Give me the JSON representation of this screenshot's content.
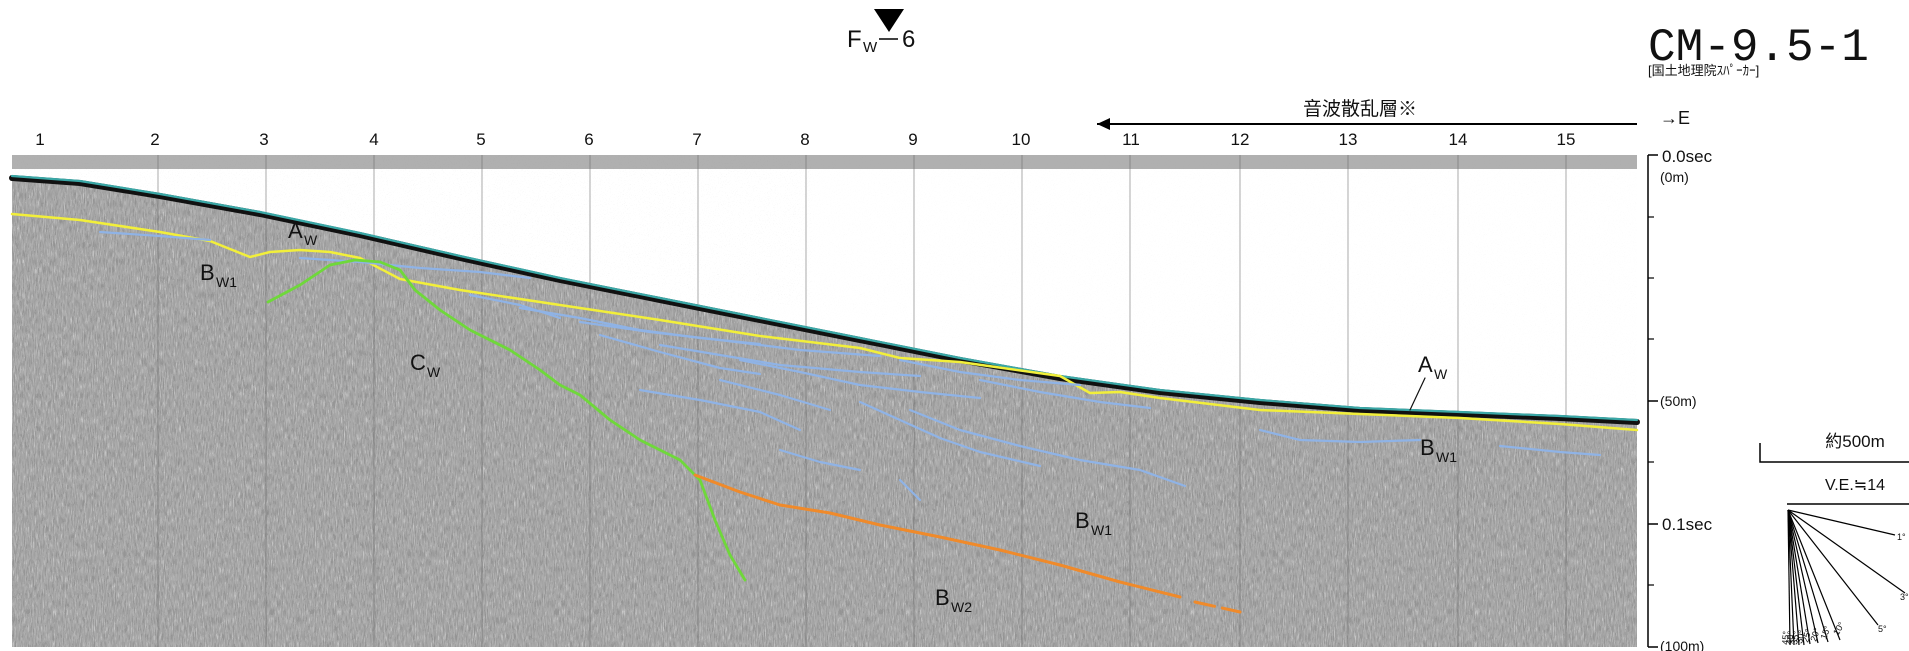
{
  "header": {
    "fault_label": "F",
    "fault_sub": "W",
    "fault_num": "6",
    "profile_id": "CM-9.5-1",
    "profile_source": "[国土地理院ｽﾊﾟｰｶｰ]"
  },
  "shot_points": [
    "1",
    "2",
    "3",
    "4",
    "5",
    "6",
    "7",
    "8",
    "9",
    "10",
    "11",
    "12",
    "13",
    "14",
    "15"
  ],
  "direction": {
    "label": "→E",
    "scatter_label": "音波散乱層※"
  },
  "time_axis": {
    "ticks": [
      {
        "sec": "0.0sec",
        "depth": "(0m)"
      },
      {
        "sec": "",
        "depth": "(50m)"
      },
      {
        "sec": "0.1sec",
        "depth": ""
      },
      {
        "sec": "",
        "depth": "(100m)"
      }
    ]
  },
  "scale": {
    "length_label": "約500m",
    "ve_label": "V.E.≒14",
    "angles": [
      "1°",
      "3°",
      "5°",
      "10°",
      "15°",
      "20°",
      "25°",
      "30°",
      "35°",
      "40°",
      "45°"
    ]
  },
  "horizon_labels": [
    {
      "id": "aw_1",
      "main": "A",
      "sub": "W"
    },
    {
      "id": "bw1_1",
      "main": "B",
      "sub": "W1"
    },
    {
      "id": "cw",
      "main": "C",
      "sub": "W"
    },
    {
      "id": "aw_2",
      "main": "A",
      "sub": "W"
    },
    {
      "id": "bw1_2",
      "main": "B",
      "sub": "W1"
    },
    {
      "id": "bw1_3",
      "main": "B",
      "sub": "W1"
    },
    {
      "id": "bw2",
      "main": "B",
      "sub": "W2"
    }
  ],
  "colors": {
    "seafloor": "#3aa7a6",
    "horizon_a": "#f2ef3a",
    "horizon_b": "#8fb3e6",
    "fault_c": "#6fd83a",
    "horizon_bw2": "#f08a2a",
    "record_dark": "#4a4a4a",
    "record_light": "#b9b9b9"
  }
}
